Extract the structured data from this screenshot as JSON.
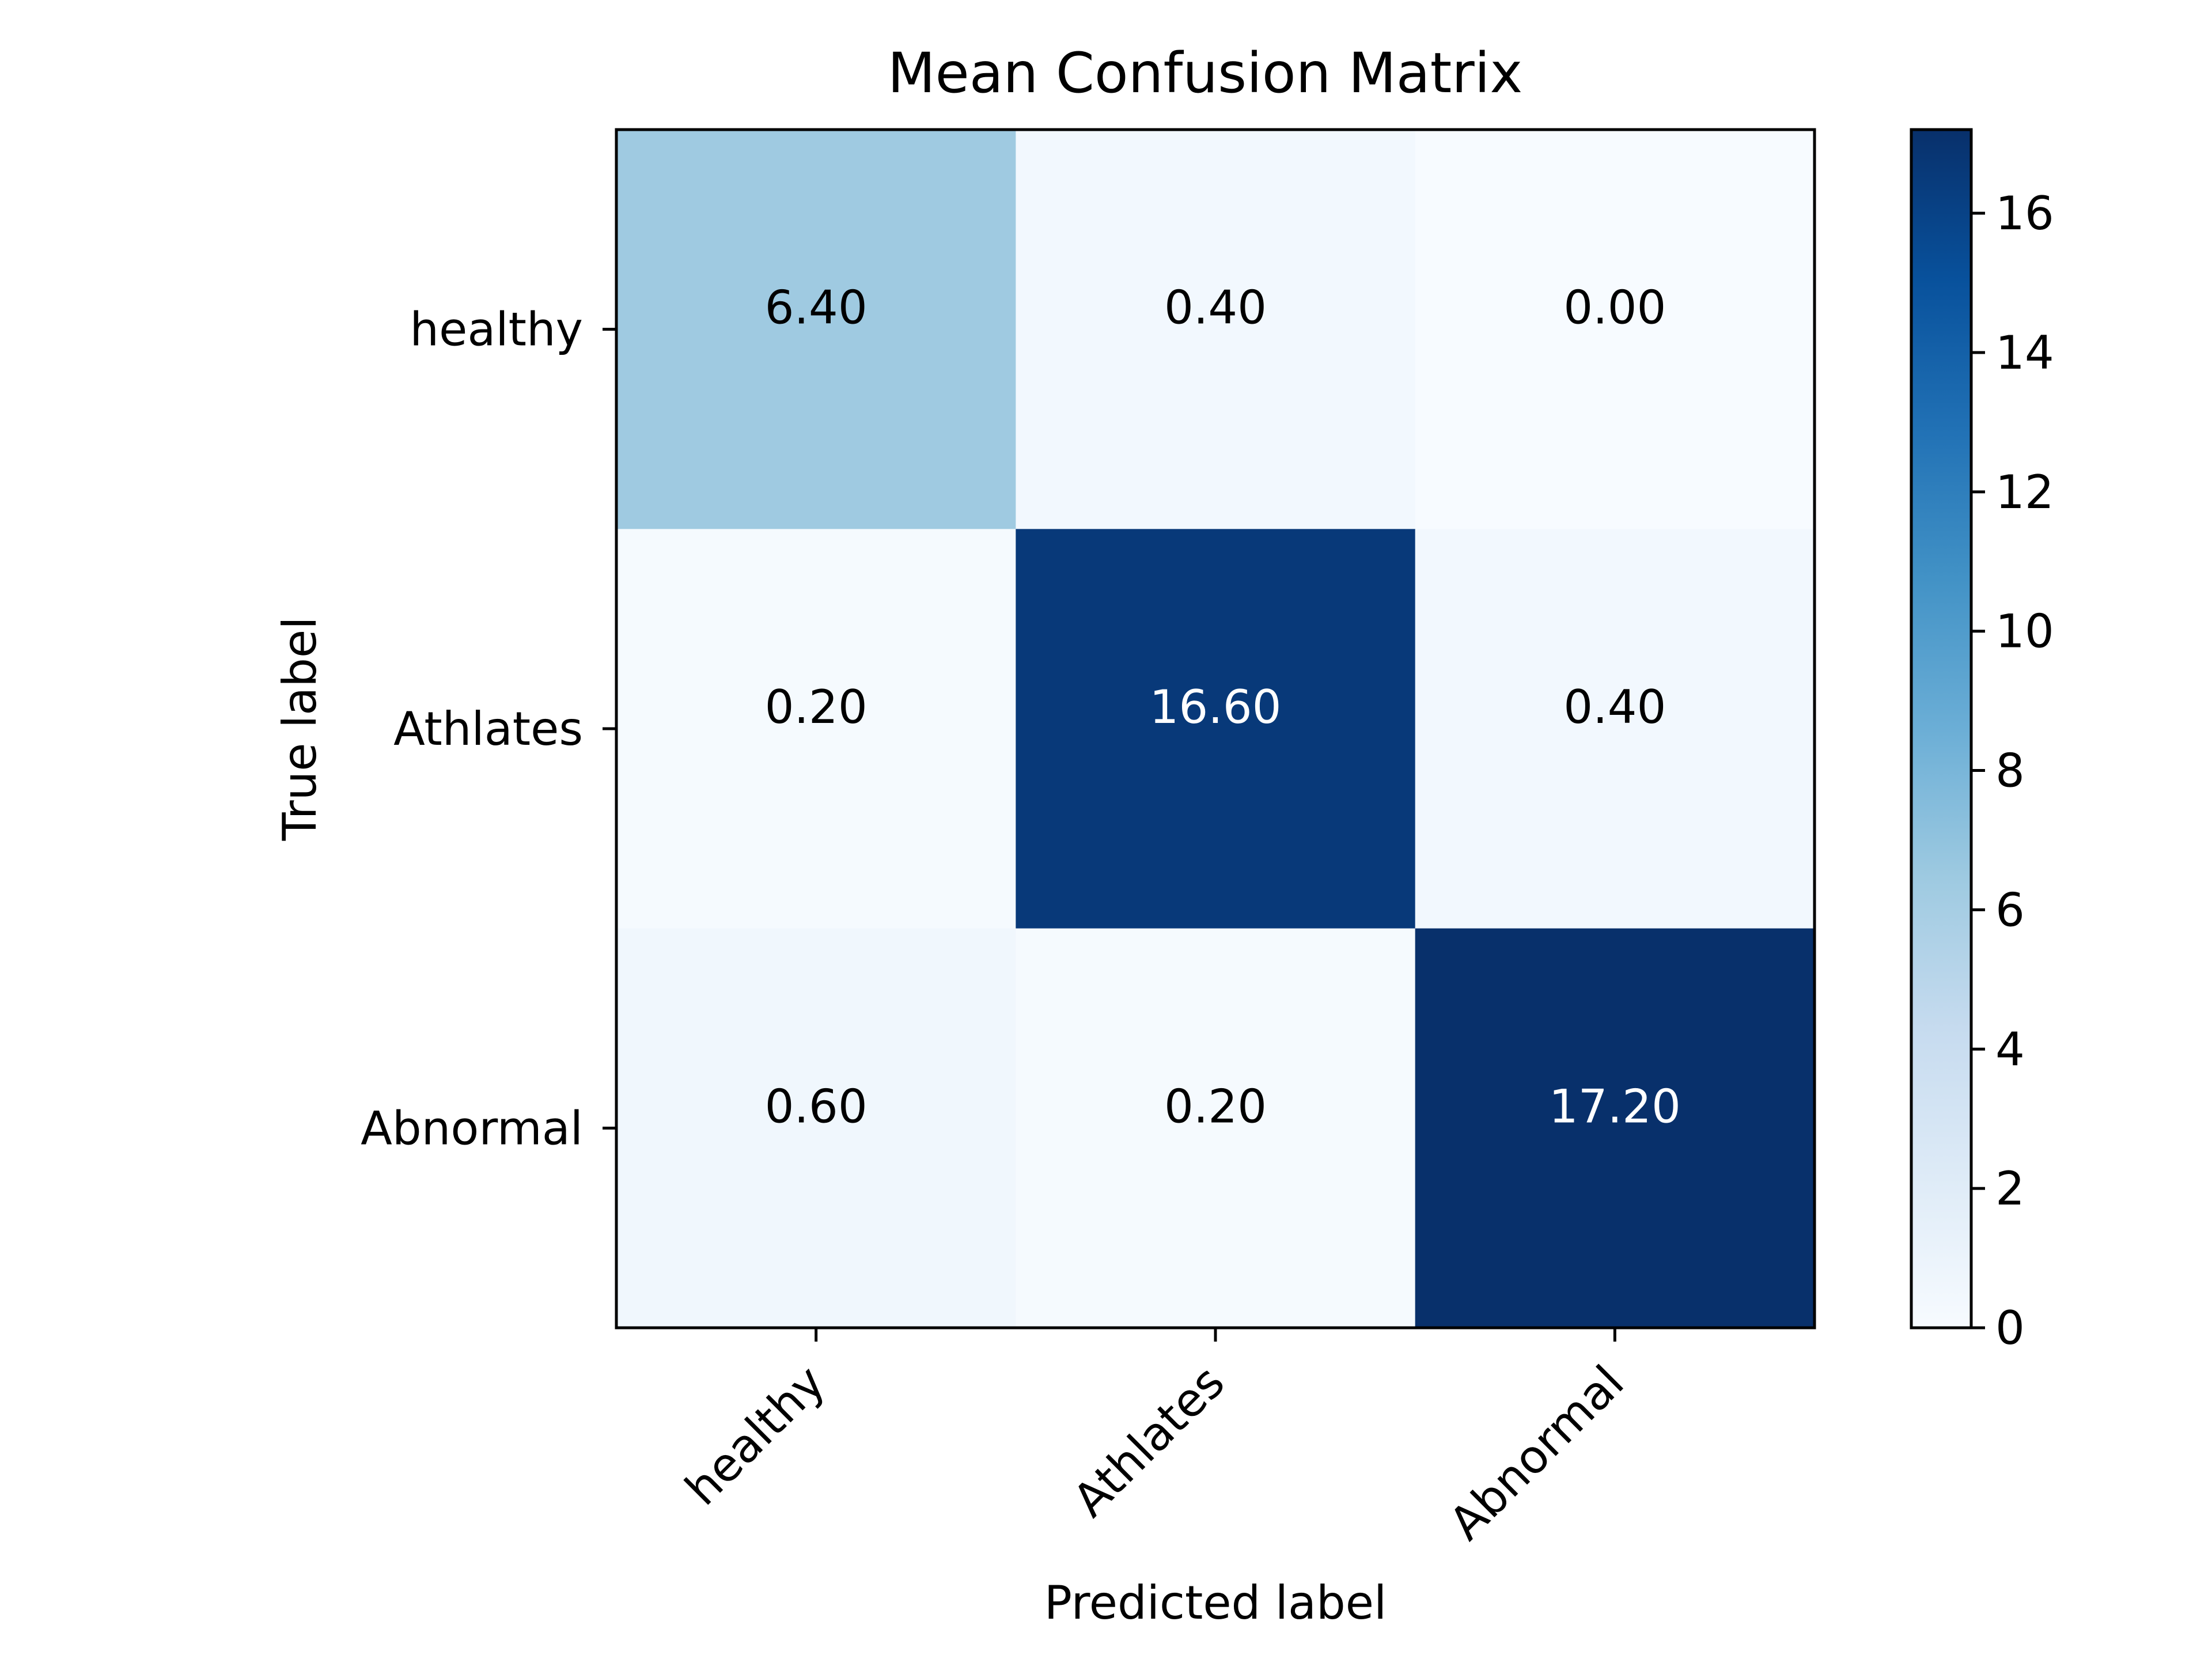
{
  "chart_data": {
    "type": "heatmap",
    "title": "Mean Confusion Matrix",
    "xlabel": "Predicted label",
    "ylabel": "True label",
    "x_categories": [
      "healthy",
      "Athlates",
      "Abnormal"
    ],
    "y_categories": [
      "healthy",
      "Athlates",
      "Abnormal"
    ],
    "values": [
      [
        6.4,
        0.4,
        0.0
      ],
      [
        0.2,
        16.6,
        0.4
      ],
      [
        0.6,
        0.2,
        17.2
      ]
    ],
    "value_labels": [
      [
        "6.40",
        "0.40",
        "0.00"
      ],
      [
        "0.20",
        "16.60",
        "0.40"
      ],
      [
        "0.60",
        "0.20",
        "17.20"
      ]
    ],
    "colormap": "Blues",
    "colorbar": {
      "range": [
        0,
        17.2
      ],
      "ticks": [
        0,
        2,
        4,
        6,
        8,
        10,
        12,
        14,
        16
      ],
      "tick_labels": [
        "0",
        "2",
        "4",
        "6",
        "8",
        "10",
        "12",
        "14",
        "16"
      ]
    },
    "grid": false
  }
}
